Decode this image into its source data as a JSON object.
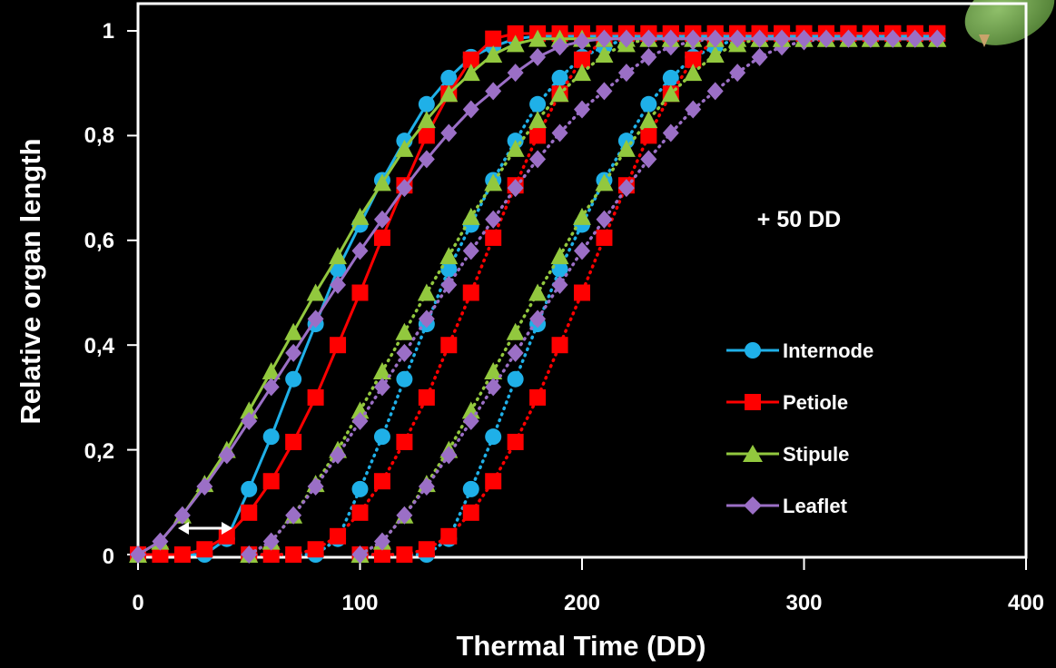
{
  "chart_data": {
    "type": "line",
    "xlabel": "Thermal Time (DD)",
    "ylabel": "Relative organ length",
    "xlim": [
      0,
      400
    ],
    "ylim": [
      0,
      1
    ],
    "x_ticks": [
      "0",
      "100",
      "200",
      "300",
      "400"
    ],
    "y_ticks": [
      "0",
      "0,2",
      "0,4",
      "0,6",
      "0,8",
      "1"
    ],
    "grid": false,
    "legend_position": "right",
    "annotations": [
      "+ 50 DD"
    ],
    "x": [
      0,
      10,
      20,
      30,
      40,
      50,
      60,
      70,
      80,
      90,
      100,
      110,
      120,
      130,
      140,
      150,
      160,
      170,
      180,
      190,
      200,
      210,
      220,
      230,
      240,
      250,
      260,
      270,
      280,
      290,
      300,
      310,
      320,
      330,
      340,
      350,
      360
    ],
    "series": [
      {
        "name": "Internode",
        "color": "#1fb0e8",
        "marker": "circle",
        "values": [
          0,
          0,
          0,
          0,
          0.03,
          0.125,
          0.225,
          0.335,
          0.44,
          0.545,
          0.63,
          0.715,
          0.79,
          0.86,
          0.91,
          0.95,
          0.97,
          0.985,
          0.99,
          0.99,
          0.99,
          0.99,
          0.99,
          0.99,
          0.99,
          0.99,
          0.99,
          0.99,
          0.99,
          0.99,
          0.99,
          0.99,
          0.99,
          0.99,
          0.99,
          0.99,
          0.99
        ]
      },
      {
        "name": "Petiole",
        "color": "#ff0000",
        "marker": "square",
        "values": [
          0,
          0,
          0,
          0.01,
          0.035,
          0.08,
          0.14,
          0.215,
          0.3,
          0.4,
          0.5,
          0.605,
          0.705,
          0.8,
          0.88,
          0.945,
          0.985,
          0.995,
          0.995,
          0.995,
          0.995,
          0.995,
          0.995,
          0.995,
          0.995,
          0.995,
          0.995,
          0.995,
          0.995,
          0.995,
          0.995,
          0.995,
          0.995,
          0.995,
          0.995,
          0.995,
          0.995
        ]
      },
      {
        "name": "Stipule",
        "color": "#92c83e",
        "marker": "triangle",
        "values": [
          0,
          0.025,
          0.075,
          0.135,
          0.2,
          0.275,
          0.35,
          0.425,
          0.5,
          0.57,
          0.645,
          0.71,
          0.775,
          0.83,
          0.88,
          0.92,
          0.955,
          0.975,
          0.985,
          0.985,
          0.985,
          0.985,
          0.985,
          0.985,
          0.985,
          0.985,
          0.985,
          0.985,
          0.985,
          0.985,
          0.985,
          0.985,
          0.985,
          0.985,
          0.985,
          0.985,
          0.985
        ]
      },
      {
        "name": "Leaflet",
        "color": "#9b6fc6",
        "marker": "diamond",
        "values": [
          0,
          0.025,
          0.075,
          0.13,
          0.19,
          0.255,
          0.32,
          0.385,
          0.45,
          0.515,
          0.58,
          0.64,
          0.7,
          0.755,
          0.805,
          0.85,
          0.885,
          0.92,
          0.95,
          0.97,
          0.98,
          0.985,
          0.985,
          0.985,
          0.985,
          0.985,
          0.985,
          0.985,
          0.985,
          0.985,
          0.985,
          0.985,
          0.985,
          0.985,
          0.985,
          0.985,
          0.985
        ]
      }
    ],
    "shifted_repeats": {
      "line_style": "dotted",
      "x_offsets": [
        50,
        100
      ]
    }
  }
}
